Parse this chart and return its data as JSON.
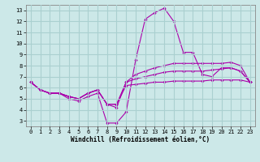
{
  "xlabel": "Windchill (Refroidissement éolien,°C)",
  "bg_color": "#cce8e8",
  "grid_color": "#aad0d0",
  "line_color": "#aa00aa",
  "xlim": [
    -0.5,
    23.5
  ],
  "ylim": [
    2.5,
    13.5
  ],
  "xticks": [
    0,
    1,
    2,
    3,
    4,
    5,
    6,
    7,
    8,
    9,
    10,
    11,
    12,
    13,
    14,
    15,
    16,
    17,
    18,
    19,
    20,
    21,
    22,
    23
  ],
  "yticks": [
    3,
    4,
    5,
    6,
    7,
    8,
    9,
    10,
    11,
    12,
    13
  ],
  "lines": [
    {
      "x": [
        0,
        1,
        2,
        3,
        4,
        5,
        6,
        7,
        8,
        9,
        10,
        11,
        12,
        13,
        14,
        15,
        16,
        17,
        18,
        19,
        20,
        21,
        22,
        23
      ],
      "y": [
        6.5,
        5.8,
        5.5,
        5.5,
        5.0,
        4.8,
        5.2,
        5.5,
        2.8,
        2.8,
        3.8,
        8.5,
        12.2,
        12.8,
        13.2,
        12.0,
        9.2,
        9.2,
        7.2,
        7.0,
        7.8,
        7.8,
        7.5,
        6.5
      ]
    },
    {
      "x": [
        0,
        1,
        2,
        3,
        4,
        5,
        6,
        7,
        8,
        9,
        10,
        11,
        12,
        13,
        14,
        15,
        16,
        17,
        18,
        19,
        20,
        21,
        22,
        23
      ],
      "y": [
        6.5,
        5.8,
        5.5,
        5.5,
        5.2,
        5.0,
        5.5,
        5.8,
        4.5,
        4.2,
        6.5,
        7.2,
        7.5,
        7.8,
        8.0,
        8.2,
        8.2,
        8.2,
        8.2,
        8.2,
        8.2,
        8.3,
        8.0,
        6.5
      ]
    },
    {
      "x": [
        0,
        1,
        2,
        3,
        4,
        5,
        6,
        7,
        8,
        9,
        10,
        11,
        12,
        13,
        14,
        15,
        16,
        17,
        18,
        19,
        20,
        21,
        22,
        23
      ],
      "y": [
        6.5,
        5.8,
        5.5,
        5.5,
        5.2,
        5.0,
        5.5,
        5.8,
        4.5,
        4.5,
        6.5,
        6.8,
        7.0,
        7.2,
        7.4,
        7.5,
        7.5,
        7.5,
        7.5,
        7.6,
        7.7,
        7.8,
        7.5,
        6.5
      ]
    },
    {
      "x": [
        0,
        1,
        2,
        3,
        4,
        5,
        6,
        7,
        8,
        9,
        10,
        11,
        12,
        13,
        14,
        15,
        16,
        17,
        18,
        19,
        20,
        21,
        22,
        23
      ],
      "y": [
        6.5,
        5.8,
        5.5,
        5.5,
        5.2,
        5.0,
        5.5,
        5.8,
        4.5,
        4.5,
        6.2,
        6.3,
        6.4,
        6.5,
        6.5,
        6.6,
        6.6,
        6.6,
        6.6,
        6.7,
        6.7,
        6.7,
        6.7,
        6.5
      ]
    }
  ]
}
